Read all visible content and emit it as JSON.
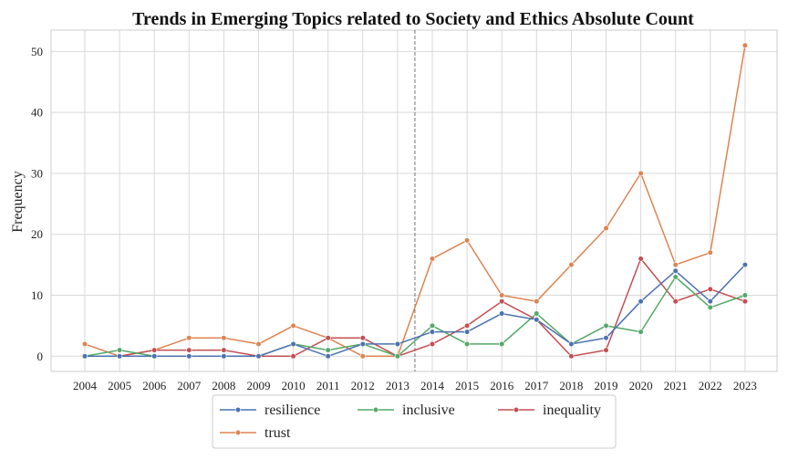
{
  "chart_data": {
    "type": "line",
    "title": "Trends in Emerging Topics related to Society and Ethics  Absolute Count",
    "xlabel": "",
    "ylabel": "Frequency",
    "x": [
      "2004",
      "2005",
      "2006",
      "2007",
      "2008",
      "2009",
      "2010",
      "2011",
      "2012",
      "2013",
      "2014",
      "2015",
      "2016",
      "2017",
      "2018",
      "2019",
      "2020",
      "2021",
      "2022",
      "2023"
    ],
    "ylim": [
      -2.5,
      53.5
    ],
    "yticks": [
      0,
      10,
      20,
      30,
      40,
      50
    ],
    "grid": true,
    "legend_position": "bottom-center",
    "divider_after": "2013",
    "series": [
      {
        "name": "resilience",
        "color": "#4c72b0",
        "values": [
          0,
          0,
          0,
          0,
          0,
          0,
          2,
          0,
          2,
          2,
          4,
          4,
          7,
          6,
          2,
          3,
          9,
          14,
          9,
          15
        ]
      },
      {
        "name": "inclusive",
        "color": "#55a868",
        "values": [
          0,
          1,
          0,
          0,
          0,
          0,
          2,
          1,
          2,
          0,
          5,
          2,
          2,
          7,
          2,
          5,
          4,
          13,
          8,
          10
        ]
      },
      {
        "name": "inequality",
        "color": "#c44e52",
        "values": [
          0,
          0,
          1,
          1,
          1,
          0,
          0,
          3,
          3,
          0,
          2,
          5,
          9,
          6,
          0,
          1,
          16,
          9,
          11,
          9
        ]
      },
      {
        "name": "trust",
        "color": "#dd8452",
        "values": [
          2,
          0,
          1,
          3,
          3,
          2,
          5,
          3,
          0,
          0,
          16,
          19,
          10,
          9,
          15,
          21,
          30,
          15,
          17,
          51
        ]
      }
    ]
  }
}
